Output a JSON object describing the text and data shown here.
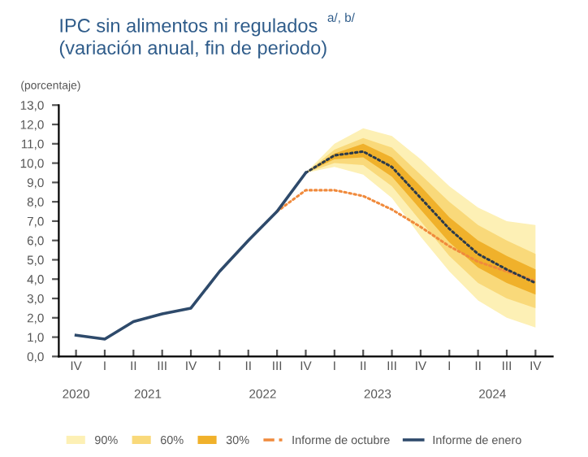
{
  "chart_data": {
    "type": "line",
    "title": "IPC sin alimentos ni regulados $^{a/, b/}$\n(variación anual, fin de periodo)",
    "ylabel": "(porcentaje)",
    "categories": [
      "IV",
      "I",
      "II",
      "III",
      "IV",
      "I",
      "II",
      "III",
      "IV",
      "I",
      "II",
      "III",
      "IV",
      "I",
      "II",
      "III",
      "IV"
    ],
    "annotations": [
      "2020",
      "2021",
      "2022",
      "2023",
      "2024"
    ],
    "ylim": [
      0,
      13
    ],
    "yticks": [
      {
        "value": 0,
        "label": "0,0"
      },
      {
        "value": 1,
        "label": "1,0"
      },
      {
        "value": 2,
        "label": "2,0"
      },
      {
        "value": 3,
        "label": "3,0"
      },
      {
        "value": 4,
        "label": "4,0"
      },
      {
        "value": 5,
        "label": "5,0"
      },
      {
        "value": 6,
        "label": "6,0"
      },
      {
        "value": 7,
        "label": "7,0"
      },
      {
        "value": 8,
        "label": "8,0"
      },
      {
        "value": 9,
        "label": "9,0"
      },
      {
        "value": 10,
        "label": "10,0"
      },
      {
        "value": 11,
        "label": "11,0"
      },
      {
        "value": 12,
        "label": "12,0"
      },
      {
        "value": 13,
        "label": "13,0"
      }
    ],
    "grid": false,
    "legend": "bottom",
    "series": [
      {
        "name": "90%",
        "color": "#fdf0b5",
        "values": [
          null,
          null,
          null,
          null,
          null,
          null,
          null,
          null,
          null,
          null,
          null,
          null,
          null,
          null,
          null,
          null,
          null
        ],
        "lower": [
          null,
          null,
          null,
          null,
          null,
          null,
          null,
          null,
          9.5,
          9.8,
          9.4,
          8.2,
          6.2,
          4.4,
          2.9,
          2.0,
          1.5
        ],
        "upper": [
          null,
          null,
          null,
          null,
          null,
          null,
          null,
          null,
          9.5,
          11.0,
          11.8,
          11.4,
          10.2,
          8.8,
          7.7,
          7.0,
          6.8
        ]
      },
      {
        "name": "60%",
        "color": "#f9d97a",
        "values": [
          null,
          null,
          null,
          null,
          null,
          null,
          null,
          null,
          null,
          null,
          null,
          null,
          null,
          null,
          null,
          null,
          null
        ],
        "lower": [
          null,
          null,
          null,
          null,
          null,
          null,
          null,
          null,
          9.5,
          10.0,
          9.9,
          8.8,
          7.0,
          5.2,
          3.8,
          3.0,
          2.5
        ],
        "upper": [
          null,
          null,
          null,
          null,
          null,
          null,
          null,
          null,
          9.5,
          10.7,
          11.3,
          10.8,
          9.4,
          8.0,
          6.8,
          6.0,
          5.3
        ]
      },
      {
        "name": "30%",
        "color": "#f0b12b",
        "values": [
          null,
          null,
          null,
          null,
          null,
          null,
          null,
          null,
          null,
          null,
          null,
          null,
          null,
          null,
          null,
          null,
          null
        ],
        "lower": [
          null,
          null,
          null,
          null,
          null,
          null,
          null,
          null,
          9.5,
          10.2,
          10.3,
          9.3,
          7.6,
          5.9,
          4.6,
          3.8,
          3.2
        ],
        "upper": [
          null,
          null,
          null,
          null,
          null,
          null,
          null,
          null,
          9.5,
          10.5,
          11.0,
          10.3,
          8.8,
          7.2,
          6.0,
          5.2,
          4.5
        ]
      },
      {
        "name": "Informe de octubre",
        "line_style": "dotted",
        "color": "#f08a3c",
        "values": [
          null,
          null,
          null,
          null,
          null,
          null,
          null,
          7.5,
          8.6,
          8.6,
          8.3,
          7.6,
          6.7,
          5.7,
          4.9,
          4.4,
          3.9
        ]
      },
      {
        "line_style": "dotted",
        "color": "#2b3a4a",
        "values": [
          null,
          null,
          null,
          null,
          null,
          null,
          null,
          null,
          9.5,
          10.4,
          10.6,
          9.8,
          8.2,
          6.6,
          5.3,
          4.5,
          3.8
        ]
      },
      {
        "name": "Informe de enero",
        "line_style": "solid",
        "color": "#2e4a6b",
        "values": [
          1.1,
          0.9,
          1.8,
          2.2,
          2.5,
          4.4,
          6.0,
          7.5,
          9.5,
          null,
          null,
          null,
          null,
          null,
          null,
          null,
          null
        ]
      }
    ]
  }
}
